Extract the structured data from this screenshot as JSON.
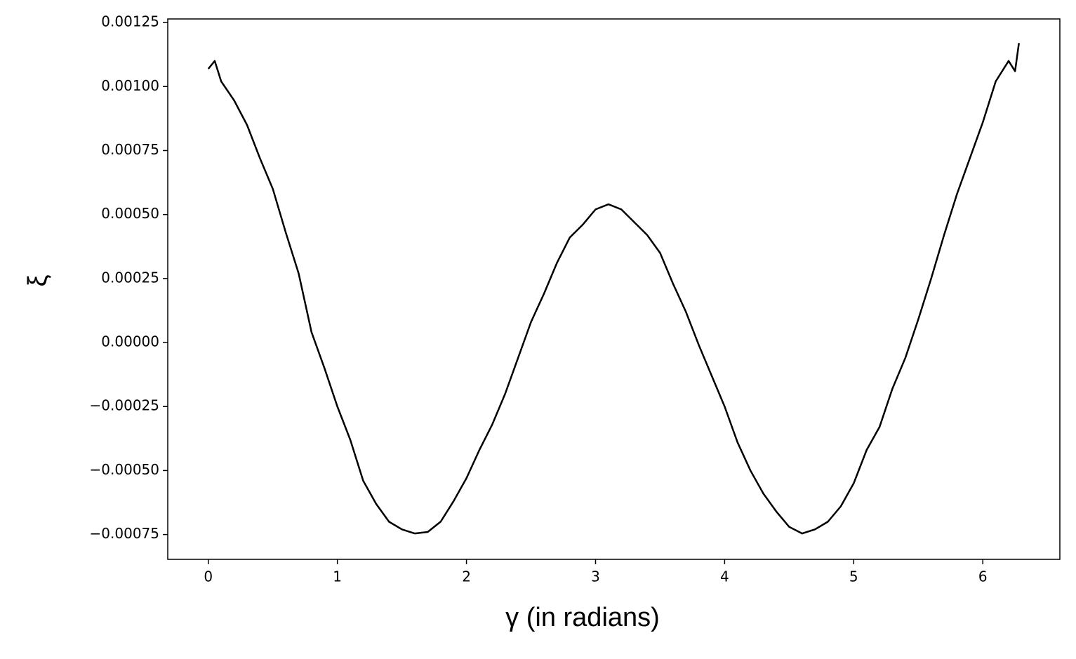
{
  "chart_data": {
    "type": "line",
    "xlabel": "γ (in radians)",
    "ylabel": "ξ",
    "x": [
      0,
      0.05,
      0.1,
      0.2,
      0.3,
      0.4,
      0.5,
      0.6,
      0.7,
      0.8,
      0.9,
      1.0,
      1.1,
      1.2,
      1.3,
      1.4,
      1.5,
      1.6,
      1.7,
      1.8,
      1.9,
      2.0,
      2.1,
      2.2,
      2.3,
      2.4,
      2.5,
      2.6,
      2.7,
      2.8,
      2.9,
      3.0,
      3.1,
      3.2,
      3.3,
      3.4,
      3.5,
      3.6,
      3.7,
      3.8,
      3.9,
      4.0,
      4.1,
      4.2,
      4.3,
      4.4,
      4.5,
      4.6,
      4.7,
      4.8,
      4.9,
      5.0,
      5.1,
      5.2,
      5.3,
      5.4,
      5.5,
      5.6,
      5.7,
      5.8,
      5.9,
      6.0,
      6.1,
      6.2,
      6.25,
      6.28
    ],
    "series": [
      {
        "name": "ξ",
        "color": "#000000",
        "values": [
          0.001069,
          0.0011,
          0.00102,
          0.000946,
          0.00085,
          0.00072,
          0.0006,
          0.00043,
          0.00027,
          4e-05,
          -0.0001,
          -0.00025,
          -0.00038,
          -0.00054,
          -0.00063,
          -0.0007,
          -0.00073,
          -0.000746,
          -0.00074,
          -0.0007,
          -0.00062,
          -0.00053,
          -0.00042,
          -0.00032,
          -0.0002,
          -6e-05,
          8e-05,
          0.00019,
          0.00031,
          0.00041,
          0.00046,
          0.00052,
          0.00054,
          0.00052,
          0.00047,
          0.00042,
          0.00035,
          0.00023,
          0.00012,
          -1e-05,
          -0.00013,
          -0.00025,
          -0.00039,
          -0.0005,
          -0.00059,
          -0.00066,
          -0.00072,
          -0.000746,
          -0.00073,
          -0.0007,
          -0.00064,
          -0.00055,
          -0.00042,
          -0.00033,
          -0.00018,
          -6e-05,
          9e-05,
          0.00025,
          0.00042,
          0.00058,
          0.00072,
          0.00086,
          0.00102,
          0.0011,
          0.00106,
          0.00117
        ]
      }
    ],
    "xlim": [
      -0.314,
      6.597
    ],
    "xticks": [
      0,
      1,
      2,
      3,
      4,
      5,
      6
    ],
    "ylim": [
      -0.000847,
      0.001264
    ],
    "yticks": [
      {
        "value": -0.00075,
        "label": "−0.00075"
      },
      {
        "value": -0.0005,
        "label": "−0.00050"
      },
      {
        "value": -0.00025,
        "label": "−0.00025"
      },
      {
        "value": 0,
        "label": "0.00000"
      },
      {
        "value": 0.00025,
        "label": "0.00025"
      },
      {
        "value": 0.0005,
        "label": "0.00050"
      },
      {
        "value": 0.00075,
        "label": "0.00075"
      },
      {
        "value": 0.001,
        "label": "0.00100"
      },
      {
        "value": 0.00125,
        "label": "0.00125"
      }
    ],
    "grid": false
  }
}
